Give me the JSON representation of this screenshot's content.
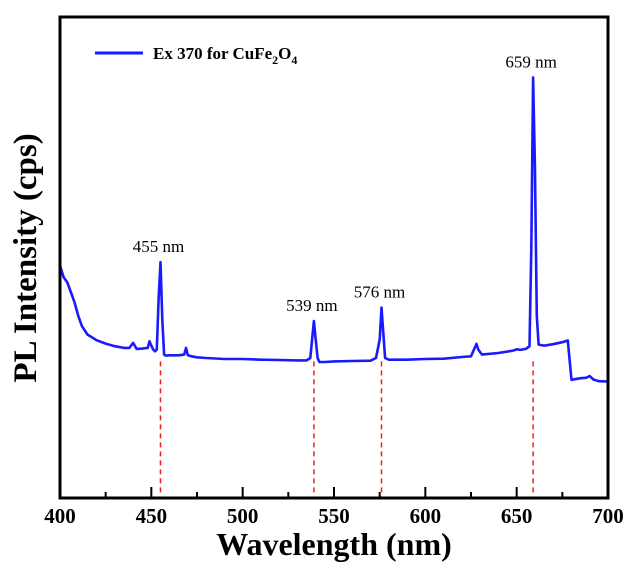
{
  "chart_data": {
    "type": "line",
    "title": "",
    "xlabel": "Wavelength (nm)",
    "ylabel": "PL Intensity (cps)",
    "xlim": [
      400,
      700
    ],
    "ylim": [
      0,
      100
    ],
    "xticks": [
      "400",
      "450",
      "500",
      "550",
      "600",
      "650",
      "700"
    ],
    "yticks_shown": false,
    "grid": false,
    "legend_position": "top-left",
    "series": [
      {
        "name": "Ex 370 for CuFe2O4",
        "legend_parts": {
          "main": "Ex 370 for CuFe",
          "sub1": "2",
          "mid": "O",
          "sub2": "4"
        },
        "color": "#1a1aff",
        "x": [
          400,
          402,
          404,
          406,
          408,
          410,
          412,
          415,
          420,
          425,
          430,
          435,
          438,
          440,
          442,
          445,
          448,
          449,
          450,
          451,
          452,
          453,
          454,
          455,
          456,
          457,
          458,
          460,
          465,
          468,
          469,
          470,
          472,
          475,
          480,
          490,
          500,
          510,
          520,
          530,
          535,
          537,
          538,
          539,
          540,
          541,
          542,
          545,
          550,
          560,
          570,
          573,
          575,
          576,
          577,
          578,
          580,
          590,
          600,
          610,
          620,
          625,
          627,
          628,
          629,
          631,
          640,
          648,
          650,
          652,
          655,
          657,
          658,
          659,
          660,
          661,
          662,
          665,
          670,
          675,
          678,
          679,
          680,
          682,
          685,
          688,
          690,
          692,
          695,
          700
        ],
        "y": [
          40,
          36.5,
          35,
          32,
          29,
          25,
          22,
          19.5,
          17.8,
          16.8,
          16,
          15.5,
          15.5,
          17,
          15.2,
          15.3,
          15.5,
          17.5,
          16.2,
          15,
          14.5,
          15,
          30,
          41,
          24,
          13.5,
          13.2,
          13.3,
          13.3,
          13.5,
          15.5,
          13.3,
          13,
          12.7,
          12.5,
          12.2,
          12.2,
          12,
          11.9,
          11.8,
          11.8,
          12.5,
          18,
          23.5,
          18,
          12.5,
          11.3,
          11.3,
          11.5,
          11.6,
          11.7,
          12.5,
          18,
          27.5,
          20,
          12.5,
          12,
          12,
          12.2,
          12.3,
          12.8,
          13,
          15.5,
          16.7,
          15,
          13.5,
          14,
          14.7,
          15.1,
          14.9,
          15.2,
          16,
          45,
          96,
          70,
          25,
          16.5,
          16.2,
          16.6,
          17.2,
          17.7,
          12,
          6,
          6.2,
          6.5,
          6.6,
          7.1,
          6.1,
          5.6,
          5.5
        ]
      }
    ],
    "annotations": [
      {
        "x": 455,
        "label": "455 nm",
        "peak_y": 41
      },
      {
        "x": 539,
        "label": "539 nm",
        "peak_y": 23.5
      },
      {
        "x": 576,
        "label": "576 nm",
        "peak_y": 27.5
      },
      {
        "x": 659,
        "label": "659 nm",
        "peak_y": 96
      }
    ]
  }
}
